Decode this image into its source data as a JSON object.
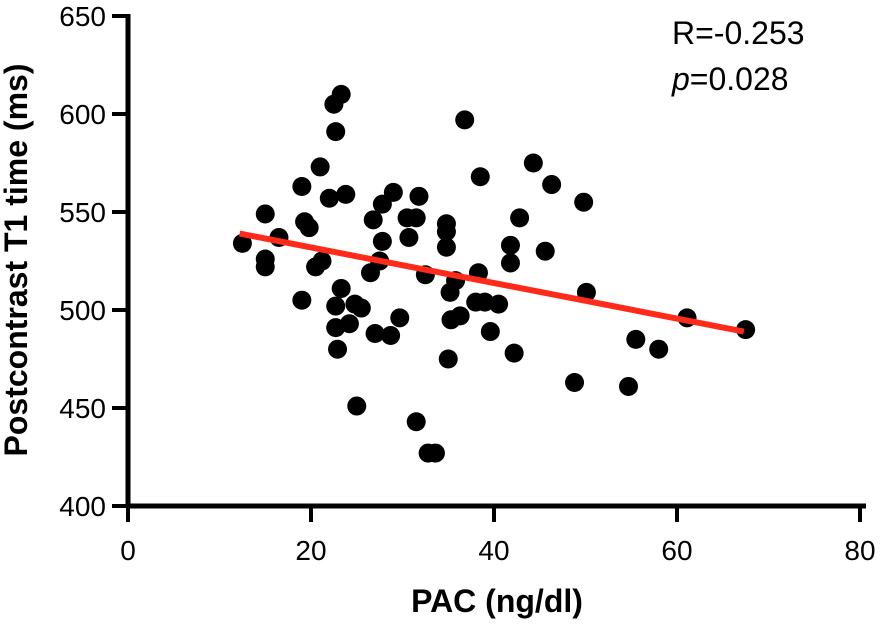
{
  "chart_data": {
    "type": "scatter",
    "xlabel": "PAC (ng/dl)",
    "ylabel": "Postcontrast T1 time (ms)",
    "xlim": [
      0,
      80
    ],
    "ylim": [
      400,
      650
    ],
    "x_ticks": [
      0,
      20,
      40,
      60,
      80
    ],
    "y_ticks": [
      400,
      450,
      500,
      550,
      600,
      650
    ],
    "grid": false,
    "annotations": {
      "r_text": "R=-0.253",
      "p_label": "p",
      "p_value_text": "=0.028"
    },
    "regression": {
      "x1": 12.2,
      "y1": 539,
      "x2": 67.3,
      "y2": 489,
      "color": "#ff2a1a"
    },
    "point_color": "#000000",
    "points": [
      {
        "x": 12.5,
        "y": 534
      },
      {
        "x": 15.0,
        "y": 549
      },
      {
        "x": 15.0,
        "y": 526
      },
      {
        "x": 15.0,
        "y": 522
      },
      {
        "x": 16.5,
        "y": 537
      },
      {
        "x": 19.0,
        "y": 563
      },
      {
        "x": 19.0,
        "y": 505
      },
      {
        "x": 19.3,
        "y": 545
      },
      {
        "x": 19.8,
        "y": 542
      },
      {
        "x": 20.5,
        "y": 522
      },
      {
        "x": 21.0,
        "y": 573
      },
      {
        "x": 21.2,
        "y": 525
      },
      {
        "x": 22.0,
        "y": 557
      },
      {
        "x": 22.5,
        "y": 605
      },
      {
        "x": 22.7,
        "y": 591
      },
      {
        "x": 22.7,
        "y": 502
      },
      {
        "x": 22.7,
        "y": 491
      },
      {
        "x": 22.9,
        "y": 480
      },
      {
        "x": 23.3,
        "y": 610
      },
      {
        "x": 23.3,
        "y": 511
      },
      {
        "x": 23.8,
        "y": 559
      },
      {
        "x": 24.2,
        "y": 493
      },
      {
        "x": 24.8,
        "y": 503
      },
      {
        "x": 25.0,
        "y": 451
      },
      {
        "x": 25.5,
        "y": 501
      },
      {
        "x": 26.5,
        "y": 519
      },
      {
        "x": 26.8,
        "y": 546
      },
      {
        "x": 27.0,
        "y": 488
      },
      {
        "x": 27.5,
        "y": 525
      },
      {
        "x": 27.8,
        "y": 554
      },
      {
        "x": 27.8,
        "y": 535
      },
      {
        "x": 28.7,
        "y": 487
      },
      {
        "x": 29.0,
        "y": 560
      },
      {
        "x": 29.7,
        "y": 496
      },
      {
        "x": 30.5,
        "y": 547
      },
      {
        "x": 30.7,
        "y": 537
      },
      {
        "x": 31.5,
        "y": 547
      },
      {
        "x": 31.5,
        "y": 443
      },
      {
        "x": 31.8,
        "y": 558
      },
      {
        "x": 32.5,
        "y": 518
      },
      {
        "x": 32.8,
        "y": 427
      },
      {
        "x": 33.6,
        "y": 427
      },
      {
        "x": 34.8,
        "y": 544
      },
      {
        "x": 34.8,
        "y": 540
      },
      {
        "x": 34.8,
        "y": 532
      },
      {
        "x": 35.0,
        "y": 475
      },
      {
        "x": 35.2,
        "y": 509
      },
      {
        "x": 35.3,
        "y": 495
      },
      {
        "x": 35.8,
        "y": 515
      },
      {
        "x": 36.3,
        "y": 497
      },
      {
        "x": 36.8,
        "y": 597
      },
      {
        "x": 38.0,
        "y": 504
      },
      {
        "x": 38.3,
        "y": 519
      },
      {
        "x": 38.5,
        "y": 568
      },
      {
        "x": 39.0,
        "y": 504
      },
      {
        "x": 39.6,
        "y": 489
      },
      {
        "x": 40.5,
        "y": 503
      },
      {
        "x": 41.8,
        "y": 533
      },
      {
        "x": 41.8,
        "y": 524
      },
      {
        "x": 42.2,
        "y": 478
      },
      {
        "x": 42.8,
        "y": 547
      },
      {
        "x": 44.3,
        "y": 575
      },
      {
        "x": 45.6,
        "y": 530
      },
      {
        "x": 46.3,
        "y": 564
      },
      {
        "x": 48.8,
        "y": 463
      },
      {
        "x": 49.8,
        "y": 555
      },
      {
        "x": 50.1,
        "y": 509
      },
      {
        "x": 54.7,
        "y": 461
      },
      {
        "x": 55.5,
        "y": 485
      },
      {
        "x": 58.0,
        "y": 480
      },
      {
        "x": 61.1,
        "y": 496
      },
      {
        "x": 67.5,
        "y": 490
      }
    ]
  }
}
